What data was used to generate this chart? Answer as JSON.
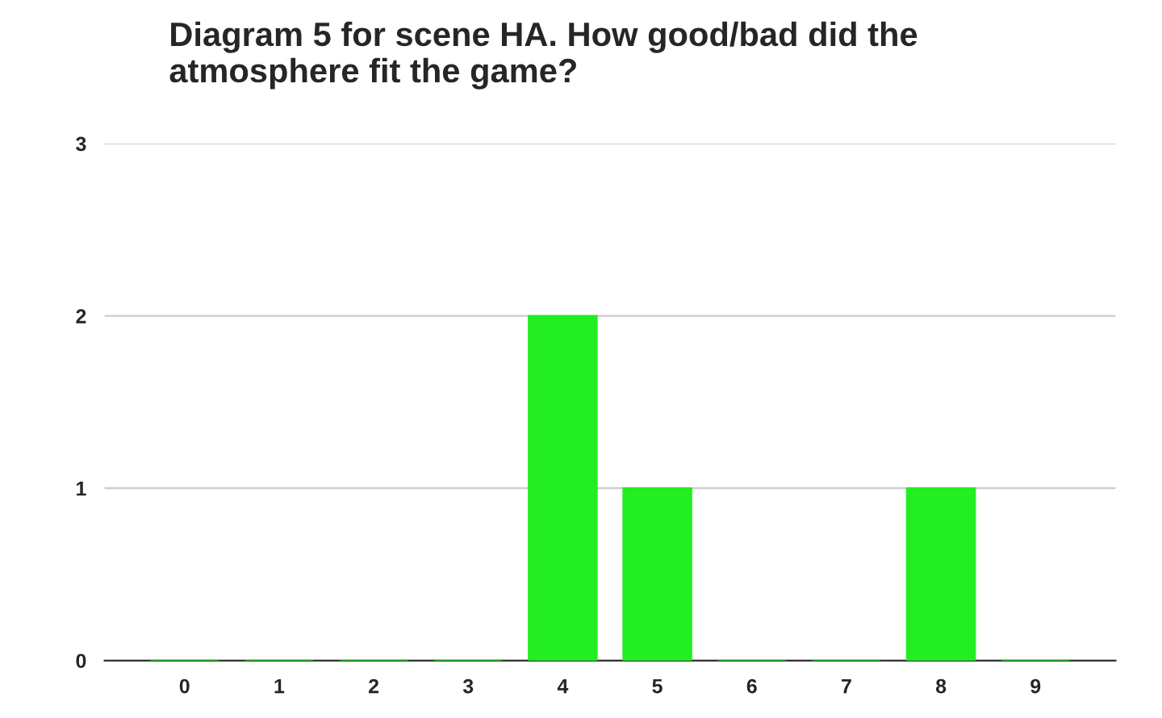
{
  "chart_data": {
    "type": "bar",
    "title": "Diagram 5 for scene HA. How good/bad did the atmosphere fit the game?",
    "categories": [
      "0",
      "1",
      "2",
      "3",
      "4",
      "5",
      "6",
      "7",
      "8",
      "9"
    ],
    "values": [
      0,
      0,
      0,
      0,
      2,
      1,
      0,
      0,
      1,
      0
    ],
    "color": "#22ee22",
    "ylim": [
      0,
      3
    ],
    "yticks": [
      0,
      1,
      2,
      3
    ],
    "grid": "y"
  }
}
